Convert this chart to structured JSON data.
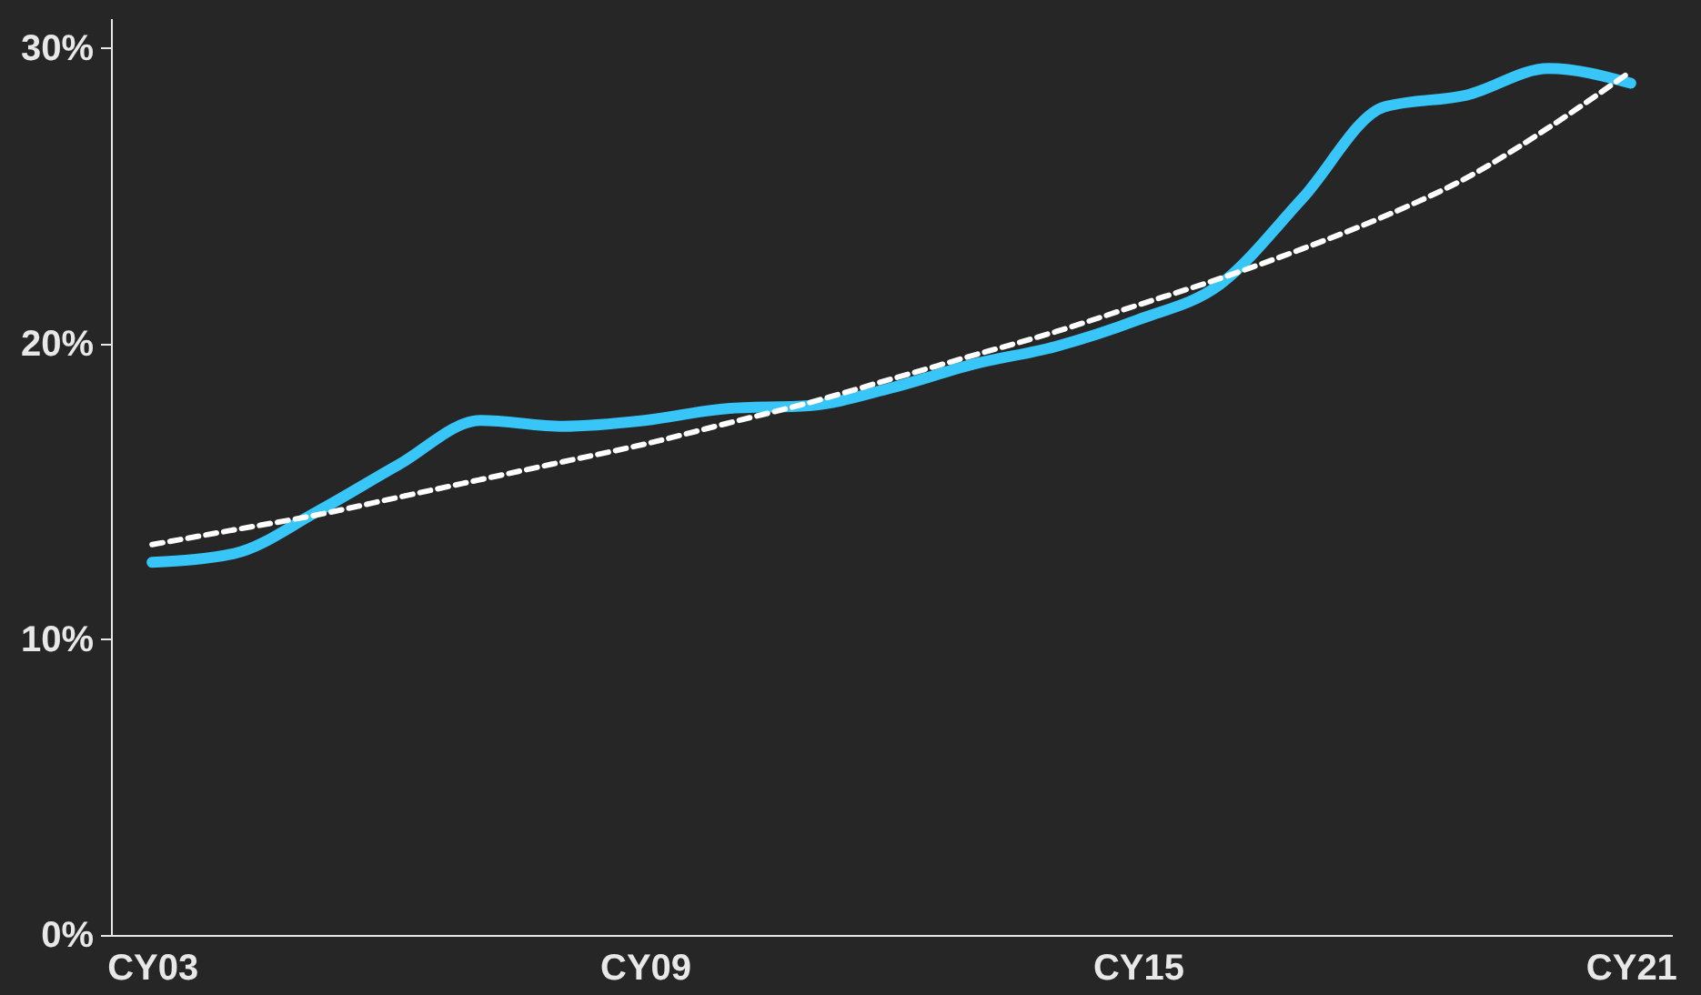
{
  "chart_data": {
    "type": "line",
    "categories": [
      "CY03",
      null,
      null,
      null,
      null,
      null,
      "CY09",
      null,
      null,
      null,
      null,
      null,
      "CY15",
      null,
      null,
      null,
      null,
      null,
      "CY21"
    ],
    "series": [
      {
        "color": "#38c6f9",
        "line_style": "solid",
        "values": [
          12.6,
          12.9,
          14.3,
          15.9,
          17.4,
          17.2,
          17.4,
          17.8,
          17.9,
          18.5,
          19.3,
          19.9,
          20.8,
          22.0,
          24.9,
          28.0,
          28.4,
          29.3,
          28.8
        ]
      },
      {
        "color": "#ffffff",
        "line_style": "dashed",
        "values": [
          13.2,
          13.7,
          14.2,
          14.8,
          15.4,
          16.0,
          16.6,
          17.3,
          18.0,
          18.8,
          19.6,
          20.4,
          21.3,
          22.2,
          23.2,
          24.3,
          25.6,
          27.3,
          29.2
        ]
      }
    ],
    "ylim": [
      0,
      31
    ],
    "yticks": [
      {
        "value": 0,
        "label": "0%"
      },
      {
        "value": 10,
        "label": "10%"
      },
      {
        "value": 20,
        "label": "20%"
      },
      {
        "value": 30,
        "label": "30%"
      }
    ],
    "grid": false,
    "marker": "none"
  }
}
